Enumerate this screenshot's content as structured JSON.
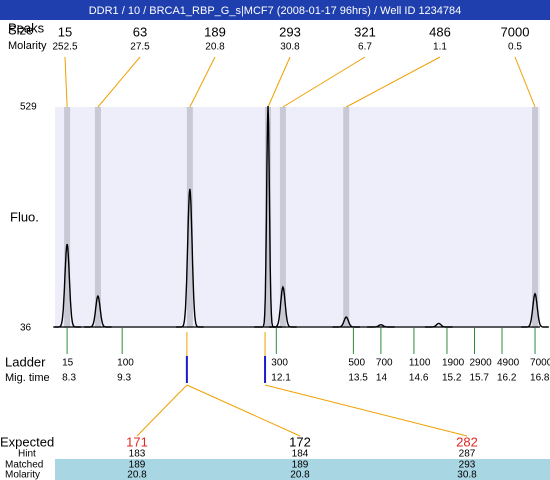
{
  "header": {
    "title": "DDR1 / 10 / BRCA1_RBP_G_s|MCF7 (2008-01-17 96hrs) / Well ID 1234784"
  },
  "peaks": {
    "peaks_label": "Peaks",
    "size_label": "Size",
    "molarity_label": "Molarity",
    "sizes": [
      15,
      63,
      189,
      293,
      321,
      486,
      7000
    ],
    "molarities": [
      252.5,
      27.5,
      20.8,
      30.8,
      6.7,
      1.1,
      0.5
    ],
    "times": [
      8.3,
      8.86,
      10.53,
      11.95,
      12.22,
      13.37,
      16.8
    ]
  },
  "plot": {
    "y_label": "Fluo.",
    "ylim": [
      36,
      529
    ],
    "yticks": [
      36,
      529
    ],
    "xlim": [
      8.08,
      16.89
    ],
    "trace_peaks": [
      {
        "time": 8.3,
        "height": 221
      },
      {
        "time": 8.86,
        "height": 105
      },
      {
        "time": 10.53,
        "height": 344
      },
      {
        "time": 11.95,
        "height": 529
      },
      {
        "time": 12.22,
        "height": 125
      },
      {
        "time": 13.37,
        "height": 58
      },
      {
        "time": 14.0,
        "height": 41
      },
      {
        "time": 15.05,
        "height": 44
      },
      {
        "time": 16.8,
        "height": 110
      }
    ]
  },
  "ladder": {
    "label": "Ladder",
    "time_label": "Mig. time",
    "sizes": [
      15,
      100,
      300,
      500,
      700,
      1100,
      1900,
      2900,
      4900,
      7000
    ],
    "times": [
      8.3,
      9.3,
      12.1,
      13.5,
      14,
      14.6,
      15.2,
      15.7,
      16.2,
      16.8
    ]
  },
  "expected": {
    "label": "Expected",
    "hint_label": "Hint",
    "matched_label": "Matched",
    "molarity_label": "Molarity",
    "columns": [
      {
        "expected": 171,
        "color": "#e0281e",
        "hint": 183,
        "matched": 189,
        "molarity": 20.8
      },
      {
        "expected": 172,
        "color": "#000000",
        "hint": 184,
        "matched": 189,
        "molarity": 20.8
      },
      {
        "expected": 282,
        "color": "#e0281e",
        "hint": 287,
        "matched": 293,
        "molarity": 30.8
      }
    ]
  }
}
